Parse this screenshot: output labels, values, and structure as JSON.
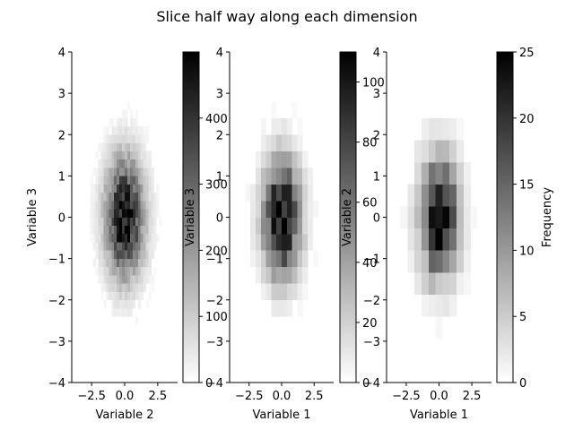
{
  "figure": {
    "title": "Slice half way along each dimension"
  },
  "chart_data": [
    {
      "type": "heatmap",
      "xlabel": "Variable 2",
      "ylabel": "Variable 3",
      "xlim": [
        -4,
        4
      ],
      "ylim": [
        -4,
        4
      ],
      "xticks": [
        -2.5,
        0.0,
        2.5
      ],
      "xtick_labels": [
        "−2.5",
        "0.0",
        "2.5"
      ],
      "yticks": [
        -4,
        -3,
        -2,
        -1,
        0,
        1,
        2,
        3,
        4
      ],
      "ytick_labels": [
        "−4",
        "−3",
        "−2",
        "−1",
        "0",
        "1",
        "2",
        "3",
        "4"
      ],
      "bins": 40,
      "sigma_x": 1.0,
      "sigma_y": 1.0,
      "colormap": "gray_r",
      "colorbar": {
        "label": "",
        "vmin": 0,
        "vmax": 500,
        "ticks": [
          0,
          100,
          200,
          300,
          400
        ],
        "tick_labels": [
          "0",
          "100",
          "200",
          "300",
          "400"
        ]
      }
    },
    {
      "type": "heatmap",
      "xlabel": "Variable 1",
      "ylabel": "Variable 3",
      "xlim": [
        -4,
        4
      ],
      "ylim": [
        -4,
        4
      ],
      "xticks": [
        -2.5,
        0.0,
        2.5
      ],
      "xtick_labels": [
        "−2.5",
        "0.0",
        "2.5"
      ],
      "yticks": [
        -4,
        -3,
        -2,
        -1,
        0,
        1,
        2,
        3,
        4
      ],
      "ytick_labels": [
        "−4",
        "−3",
        "−2",
        "−1",
        "0",
        "1",
        "2",
        "3",
        "4"
      ],
      "bins": 20,
      "sigma_x": 1.0,
      "sigma_y": 1.0,
      "colormap": "gray_r",
      "colorbar": {
        "label": "",
        "vmin": 0,
        "vmax": 110,
        "ticks": [
          0,
          20,
          40,
          60,
          80,
          100
        ],
        "tick_labels": [
          "0",
          "20",
          "40",
          "60",
          "80",
          "100"
        ]
      }
    },
    {
      "type": "heatmap",
      "xlabel": "Variable 1",
      "ylabel": "Variable 2",
      "xlim": [
        -4,
        4
      ],
      "ylim": [
        -4,
        4
      ],
      "xticks": [
        -2.5,
        0.0,
        2.5
      ],
      "xtick_labels": [
        "−2.5",
        "0.0",
        "2.5"
      ],
      "yticks": [
        -4,
        -3,
        -2,
        -1,
        0,
        1,
        2,
        3,
        4
      ],
      "ytick_labels": [
        "−4",
        "−3",
        "−2",
        "−1",
        "0",
        "1",
        "2",
        "3",
        "4"
      ],
      "bins": 15,
      "sigma_x": 1.0,
      "sigma_y": 1.0,
      "colormap": "gray_r",
      "colorbar": {
        "label": "Frequency",
        "vmin": 0,
        "vmax": 25,
        "ticks": [
          0,
          5,
          10,
          15,
          20,
          25
        ],
        "tick_labels": [
          "0",
          "5",
          "10",
          "15",
          "20",
          "25"
        ]
      }
    }
  ]
}
